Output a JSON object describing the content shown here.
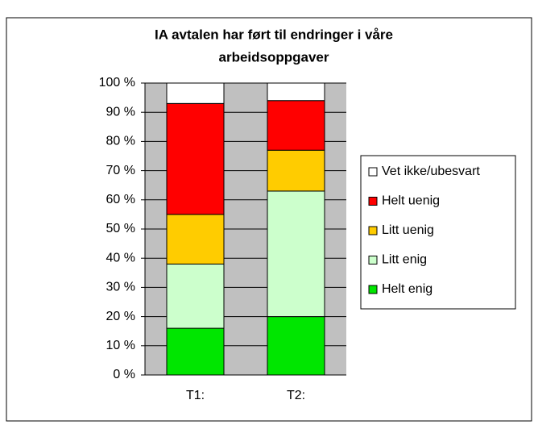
{
  "chart_data": {
    "type": "stacked_bar",
    "title": [
      "IA avtalen har ført til endringer i våre",
      "arbeidsoppgaver"
    ],
    "categories": [
      "T1:",
      "T2:"
    ],
    "series": [
      {
        "name": "Helt enig",
        "color": "#00e600",
        "values": [
          16,
          20
        ]
      },
      {
        "name": "Litt enig",
        "color": "#ccffcc",
        "values": [
          22,
          43
        ]
      },
      {
        "name": "Litt uenig",
        "color": "#ffcc00",
        "values": [
          17,
          14
        ]
      },
      {
        "name": "Helt uenig",
        "color": "#ff0000",
        "values": [
          38,
          17
        ]
      },
      {
        "name": "Vet ikke/ubesvart",
        "color": "#ffffff",
        "values": [
          7,
          6
        ]
      }
    ],
    "ylim": [
      0,
      100
    ],
    "yticks": [
      {
        "value": 0,
        "label": "0 %"
      },
      {
        "value": 10,
        "label": "10 %"
      },
      {
        "value": 20,
        "label": "20 %"
      },
      {
        "value": 30,
        "label": "30 %"
      },
      {
        "value": 40,
        "label": "40 %"
      },
      {
        "value": 50,
        "label": "50 %"
      },
      {
        "value": 60,
        "label": "60 %"
      },
      {
        "value": 70,
        "label": "70 %"
      },
      {
        "value": 80,
        "label": "80 %"
      },
      {
        "value": 90,
        "label": "90 %"
      },
      {
        "value": 100,
        "label": "100 %"
      }
    ],
    "grid": true,
    "legend": "right"
  }
}
